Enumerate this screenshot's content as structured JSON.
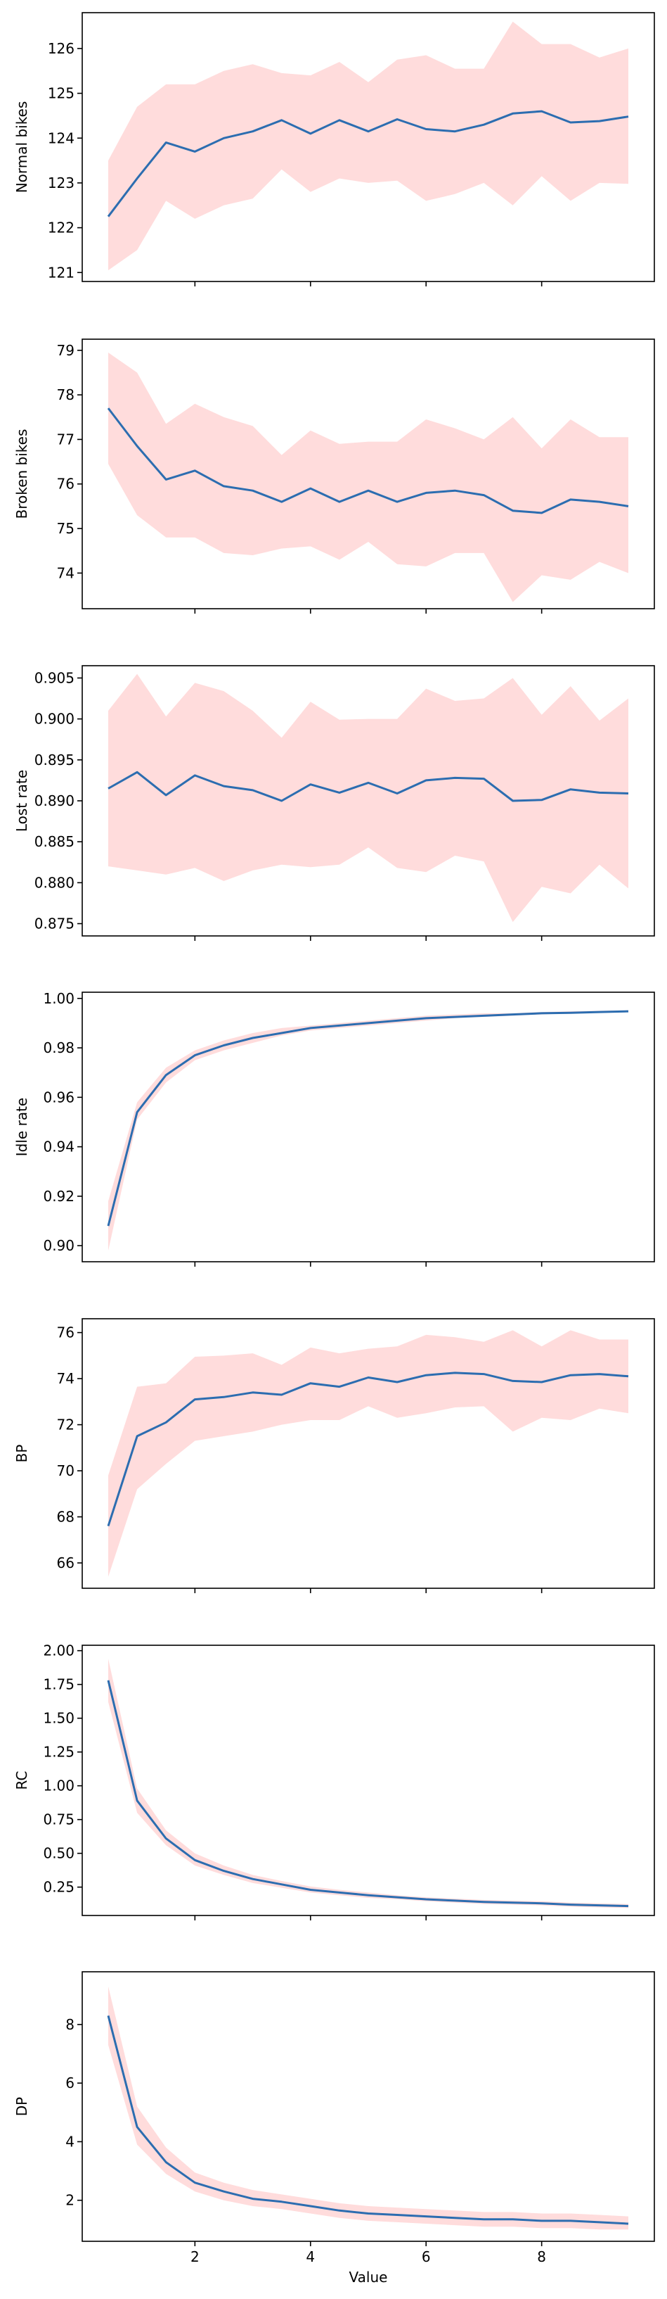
{
  "chart_data": [
    {
      "type": "line",
      "ylabel": "Normal bikes",
      "xlabel": "",
      "x_ticks": [
        "2",
        "4",
        "6",
        "8"
      ],
      "x_tick_values": [
        2,
        4,
        6,
        8
      ],
      "x_range": [
        0.05,
        9.95
      ],
      "y_ticks": [
        "121",
        "122",
        "123",
        "124",
        "125",
        "126"
      ],
      "y_tick_values": [
        121,
        122,
        123,
        124,
        125,
        126
      ],
      "ylim": [
        120.8,
        126.8
      ],
      "series": [
        {
          "x": [
            0.5,
            1,
            1.5,
            2,
            2.5,
            3,
            3.5,
            4,
            4.5,
            5,
            5.5,
            6,
            6.5,
            7,
            7.5,
            8,
            8.5,
            9,
            9.5
          ],
          "values": [
            122.25,
            123.1,
            123.9,
            123.7,
            124.0,
            124.15,
            124.4,
            124.1,
            124.4,
            124.15,
            124.42,
            124.2,
            124.15,
            124.3,
            124.55,
            124.6,
            124.35,
            124.38,
            124.48
          ],
          "lower": [
            121.05,
            121.5,
            122.6,
            122.2,
            122.5,
            122.65,
            123.3,
            122.8,
            123.1,
            123.0,
            123.05,
            122.6,
            122.75,
            123.0,
            122.5,
            123.15,
            122.6,
            123.0,
            122.98
          ],
          "upper": [
            123.5,
            124.7,
            125.2,
            125.2,
            125.5,
            125.65,
            125.45,
            125.4,
            125.7,
            125.25,
            125.75,
            125.85,
            125.55,
            125.55,
            126.6,
            126.1,
            126.1,
            125.8,
            126.0
          ]
        }
      ],
      "colors": {
        "line": "#2c6db0",
        "band": "#ffdcdc"
      },
      "grid": false
    },
    {
      "type": "line",
      "ylabel": "Broken bikes",
      "xlabel": "",
      "x_ticks": [
        "2",
        "4",
        "6",
        "8"
      ],
      "x_tick_values": [
        2,
        4,
        6,
        8
      ],
      "x_range": [
        0.05,
        9.95
      ],
      "y_ticks": [
        "74",
        "75",
        "76",
        "77",
        "78",
        "79"
      ],
      "y_tick_values": [
        74,
        75,
        76,
        77,
        78,
        79
      ],
      "ylim": [
        73.2,
        79.25
      ],
      "series": [
        {
          "x": [
            0.5,
            1,
            1.5,
            2,
            2.5,
            3,
            3.5,
            4,
            4.5,
            5,
            5.5,
            6,
            6.5,
            7,
            7.5,
            8,
            8.5,
            9,
            9.5
          ],
          "values": [
            77.7,
            76.85,
            76.1,
            76.3,
            75.95,
            75.85,
            75.6,
            75.9,
            75.6,
            75.85,
            75.6,
            75.8,
            75.85,
            75.75,
            75.4,
            75.35,
            75.65,
            75.6,
            75.5
          ],
          "lower": [
            76.45,
            75.3,
            74.8,
            74.8,
            74.45,
            74.4,
            74.55,
            74.6,
            74.3,
            74.7,
            74.2,
            74.15,
            74.45,
            74.45,
            73.35,
            73.95,
            73.85,
            74.25,
            74.0
          ],
          "upper": [
            78.95,
            78.5,
            77.35,
            77.8,
            77.5,
            77.3,
            76.65,
            77.2,
            76.9,
            76.95,
            76.95,
            77.45,
            77.25,
            77.0,
            77.5,
            76.8,
            77.45,
            77.05,
            77.05
          ]
        }
      ],
      "colors": {
        "line": "#2c6db0",
        "band": "#ffdcdc"
      },
      "grid": false
    },
    {
      "type": "line",
      "ylabel": "Lost rate",
      "xlabel": "",
      "x_ticks": [
        "2",
        "4",
        "6",
        "8"
      ],
      "x_tick_values": [
        2,
        4,
        6,
        8
      ],
      "x_range": [
        0.05,
        9.95
      ],
      "y_ticks": [
        "0.875",
        "0.880",
        "0.885",
        "0.890",
        "0.895",
        "0.900",
        "0.905"
      ],
      "y_tick_values": [
        0.875,
        0.88,
        0.885,
        0.89,
        0.895,
        0.9,
        0.905
      ],
      "ylim": [
        0.8735,
        0.9065
      ],
      "series": [
        {
          "x": [
            0.5,
            1,
            1.5,
            2,
            2.5,
            3,
            3.5,
            4,
            4.5,
            5,
            5.5,
            6,
            6.5,
            7,
            7.5,
            8,
            8.5,
            9,
            9.5
          ],
          "values": [
            0.8915,
            0.8935,
            0.8907,
            0.8931,
            0.8918,
            0.8913,
            0.89,
            0.892,
            0.891,
            0.8922,
            0.8909,
            0.8925,
            0.8928,
            0.8927,
            0.89,
            0.8901,
            0.8914,
            0.891,
            0.8909
          ],
          "lower": [
            0.882,
            0.8815,
            0.881,
            0.8818,
            0.8802,
            0.8815,
            0.8822,
            0.8819,
            0.8822,
            0.8843,
            0.8818,
            0.8813,
            0.8833,
            0.8826,
            0.8752,
            0.8795,
            0.8787,
            0.8822,
            0.8793
          ],
          "upper": [
            0.901,
            0.9055,
            0.9003,
            0.9044,
            0.9034,
            0.901,
            0.8977,
            0.9021,
            0.8999,
            0.9,
            0.9,
            0.9037,
            0.9022,
            0.9025,
            0.905,
            0.9005,
            0.904,
            0.8998,
            0.9025
          ]
        }
      ],
      "colors": {
        "line": "#2c6db0",
        "band": "#ffdcdc"
      },
      "grid": false
    },
    {
      "type": "line",
      "ylabel": "Idle rate",
      "xlabel": "",
      "x_ticks": [
        "2",
        "4",
        "6",
        "8"
      ],
      "x_tick_values": [
        2,
        4,
        6,
        8
      ],
      "x_range": [
        0.05,
        9.95
      ],
      "y_ticks": [
        "0.90",
        "0.92",
        "0.94",
        "0.96",
        "0.98",
        "1.00"
      ],
      "y_tick_values": [
        0.9,
        0.92,
        0.94,
        0.96,
        0.98,
        1.0
      ],
      "ylim": [
        0.8935,
        1.0025
      ],
      "series": [
        {
          "x": [
            0.5,
            1,
            1.5,
            2,
            2.5,
            3,
            3.5,
            4,
            4.5,
            5,
            5.5,
            6,
            6.5,
            7,
            7.5,
            8,
            8.5,
            9,
            9.5
          ],
          "values": [
            0.908,
            0.954,
            0.969,
            0.977,
            0.981,
            0.984,
            0.986,
            0.988,
            0.989,
            0.99,
            0.991,
            0.992,
            0.9925,
            0.993,
            0.9935,
            0.994,
            0.9942,
            0.9945,
            0.9948
          ],
          "lower": [
            0.898,
            0.951,
            0.966,
            0.975,
            0.979,
            0.982,
            0.985,
            0.987,
            0.988,
            0.989,
            0.99,
            0.991,
            0.992,
            0.9925,
            0.993,
            0.9935,
            0.994,
            0.9942,
            0.9945
          ],
          "upper": [
            0.918,
            0.958,
            0.972,
            0.979,
            0.983,
            0.986,
            0.988,
            0.989,
            0.99,
            0.991,
            0.992,
            0.993,
            0.9935,
            0.994,
            0.994,
            0.9945,
            0.9948,
            0.995,
            0.9952
          ]
        }
      ],
      "colors": {
        "line": "#2c6db0",
        "band": "#ffdcdc"
      },
      "grid": false
    },
    {
      "type": "line",
      "ylabel": "BP",
      "xlabel": "",
      "x_ticks": [
        "2",
        "4",
        "6",
        "8"
      ],
      "x_tick_values": [
        2,
        4,
        6,
        8
      ],
      "x_range": [
        0.05,
        9.95
      ],
      "y_ticks": [
        "66",
        "68",
        "70",
        "72",
        "74",
        "76"
      ],
      "y_tick_values": [
        66,
        68,
        70,
        72,
        74,
        76
      ],
      "ylim": [
        64.9,
        76.6
      ],
      "series": [
        {
          "x": [
            0.5,
            1,
            1.5,
            2,
            2.5,
            3,
            3.5,
            4,
            4.5,
            5,
            5.5,
            6,
            6.5,
            7,
            7.5,
            8,
            8.5,
            9,
            9.5
          ],
          "values": [
            67.6,
            71.5,
            72.1,
            73.1,
            73.2,
            73.4,
            73.3,
            73.8,
            73.65,
            74.05,
            73.85,
            74.15,
            74.25,
            74.2,
            73.9,
            73.85,
            74.15,
            74.2,
            74.1
          ],
          "lower": [
            65.4,
            69.2,
            70.3,
            71.3,
            71.5,
            71.7,
            72.0,
            72.2,
            72.2,
            72.8,
            72.3,
            72.5,
            72.75,
            72.8,
            71.7,
            72.3,
            72.2,
            72.7,
            72.5
          ],
          "upper": [
            69.8,
            73.65,
            73.8,
            74.95,
            75.0,
            75.1,
            74.6,
            75.35,
            75.1,
            75.3,
            75.4,
            75.9,
            75.8,
            75.6,
            76.1,
            75.4,
            76.1,
            75.7,
            75.7
          ]
        }
      ],
      "colors": {
        "line": "#2c6db0",
        "band": "#ffdcdc"
      },
      "grid": false
    },
    {
      "type": "line",
      "ylabel": "RC",
      "xlabel": "",
      "x_ticks": [
        "2",
        "4",
        "6",
        "8"
      ],
      "x_tick_values": [
        2,
        4,
        6,
        8
      ],
      "x_range": [
        0.05,
        9.95
      ],
      "y_ticks": [
        "0.25",
        "0.50",
        "0.75",
        "1.00",
        "1.25",
        "1.50",
        "1.75",
        "2.00"
      ],
      "y_tick_values": [
        0.25,
        0.5,
        0.75,
        1.0,
        1.25,
        1.5,
        1.75,
        2.0
      ],
      "ylim": [
        0.04,
        2.04
      ],
      "series": [
        {
          "x": [
            0.5,
            1,
            1.5,
            2,
            2.5,
            3,
            3.5,
            4,
            4.5,
            5,
            5.5,
            6,
            6.5,
            7,
            7.5,
            8,
            8.5,
            9,
            9.5
          ],
          "values": [
            1.78,
            0.89,
            0.61,
            0.45,
            0.37,
            0.31,
            0.27,
            0.23,
            0.21,
            0.19,
            0.175,
            0.16,
            0.15,
            0.14,
            0.135,
            0.13,
            0.12,
            0.115,
            0.11
          ],
          "lower": [
            1.62,
            0.8,
            0.56,
            0.41,
            0.34,
            0.28,
            0.245,
            0.21,
            0.19,
            0.17,
            0.16,
            0.145,
            0.135,
            0.125,
            0.12,
            0.115,
            0.105,
            0.1,
            0.095
          ],
          "upper": [
            1.94,
            0.98,
            0.67,
            0.5,
            0.41,
            0.34,
            0.295,
            0.255,
            0.23,
            0.21,
            0.19,
            0.175,
            0.165,
            0.155,
            0.15,
            0.145,
            0.135,
            0.13,
            0.125
          ]
        }
      ],
      "colors": {
        "line": "#2c6db0",
        "band": "#ffdcdc"
      },
      "grid": false
    },
    {
      "type": "line",
      "ylabel": "DP",
      "xlabel": "Value",
      "x_ticks": [
        "2",
        "4",
        "6",
        "8"
      ],
      "x_tick_values": [
        2,
        4,
        6,
        8
      ],
      "x_range": [
        0.05,
        9.95
      ],
      "y_ticks": [
        "2",
        "4",
        "6",
        "8"
      ],
      "y_tick_values": [
        2,
        4,
        6,
        8
      ],
      "ylim": [
        0.6,
        9.8
      ],
      "series": [
        {
          "x": [
            0.5,
            1,
            1.5,
            2,
            2.5,
            3,
            3.5,
            4,
            4.5,
            5,
            5.5,
            6,
            6.5,
            7,
            7.5,
            8,
            8.5,
            9,
            9.5
          ],
          "values": [
            8.3,
            4.5,
            3.3,
            2.6,
            2.3,
            2.05,
            1.95,
            1.8,
            1.65,
            1.55,
            1.5,
            1.45,
            1.4,
            1.35,
            1.35,
            1.3,
            1.3,
            1.25,
            1.2
          ],
          "lower": [
            7.3,
            3.9,
            2.9,
            2.3,
            2.0,
            1.8,
            1.7,
            1.55,
            1.4,
            1.3,
            1.25,
            1.2,
            1.15,
            1.1,
            1.1,
            1.05,
            1.05,
            1.0,
            1.0
          ],
          "upper": [
            9.3,
            5.2,
            3.8,
            2.95,
            2.6,
            2.35,
            2.2,
            2.05,
            1.9,
            1.8,
            1.75,
            1.7,
            1.65,
            1.6,
            1.6,
            1.55,
            1.55,
            1.5,
            1.45
          ]
        }
      ],
      "colors": {
        "line": "#2c6db0",
        "band": "#ffdcdc"
      },
      "grid": false
    }
  ]
}
